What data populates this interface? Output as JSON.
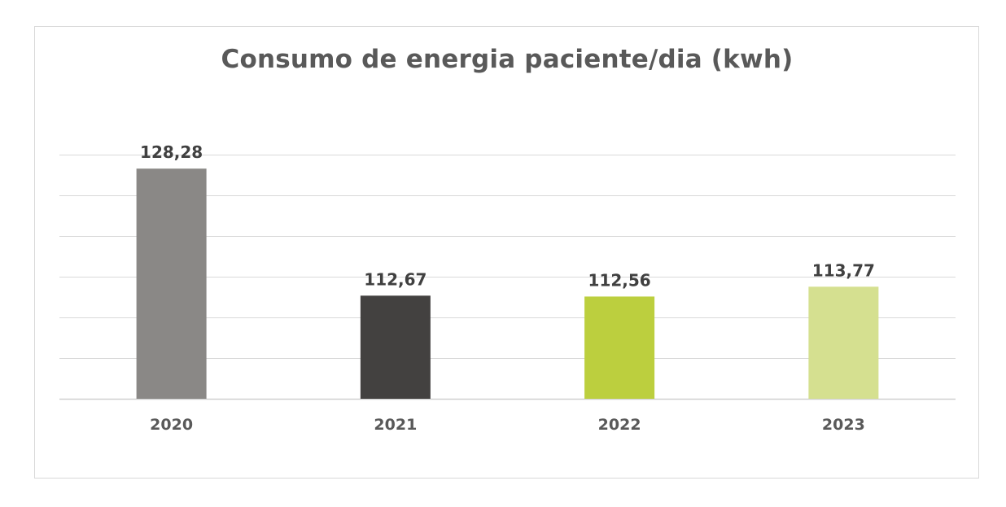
{
  "chart_data": {
    "type": "bar",
    "title": "Consumo de energia paciente/dia (kwh)",
    "xlabel": "",
    "ylabel": "",
    "categories": [
      "2020",
      "2021",
      "2022",
      "2023"
    ],
    "values": [
      128.28,
      112.67,
      112.56,
      113.77
    ],
    "value_labels": [
      "128,28",
      "112,67",
      "112,56",
      "113,77"
    ],
    "bar_colors": [
      "#8a8886",
      "#434140",
      "#bccf3e",
      "#d5e090"
    ],
    "ylim": [
      100,
      130
    ],
    "y_tick_step": 5,
    "y_tick_labels_visible": false,
    "grid": true,
    "legend": "none"
  }
}
